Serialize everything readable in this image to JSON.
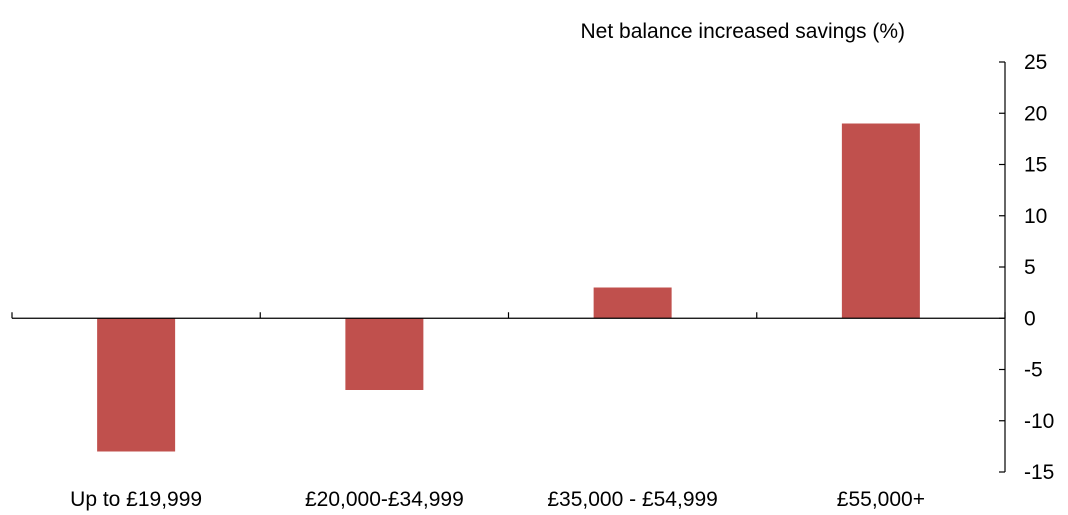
{
  "chart_data": {
    "type": "bar",
    "title": "",
    "ylabel": "Net balance increased savings (%)",
    "xlabel": "",
    "categories": [
      "Up to £19,999",
      "£20,000-£34,999",
      "£35,000 - £54,999",
      "£55,000+"
    ],
    "series": [
      {
        "values": [
          -13,
          -7,
          3,
          19
        ],
        "color": "#c0504d"
      }
    ],
    "ylim": [
      -15,
      25
    ],
    "yticks": [
      25,
      20,
      15,
      10,
      5,
      0,
      -5,
      -10,
      -15
    ],
    "ytick_labels": [
      "25",
      "20",
      "15",
      "10",
      "5",
      "0",
      "-5",
      "-10",
      "-15"
    ],
    "y_axis_side": "right",
    "grid": false,
    "legend": "none"
  }
}
